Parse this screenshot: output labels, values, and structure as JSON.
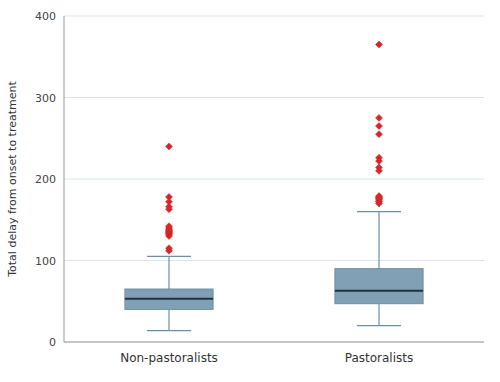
{
  "chart_data": {
    "type": "box",
    "ylabel": "Total delay from onset to treatment",
    "categories": [
      "Non-pastoralists",
      "Pastoralists"
    ],
    "boxes": [
      {
        "q1": 40,
        "median": 53,
        "q3": 65,
        "whislo": 14,
        "whishi": 105,
        "fliers": [
          112,
          115,
          130,
          132,
          133,
          134,
          135,
          136,
          137,
          138,
          140,
          142,
          163,
          166,
          172,
          178,
          240
        ]
      },
      {
        "q1": 47,
        "median": 63,
        "q3": 90,
        "whislo": 20,
        "whishi": 160,
        "fliers": [
          170,
          172,
          173,
          175,
          176,
          177,
          178,
          179,
          210,
          214,
          222,
          226,
          255,
          265,
          275,
          365
        ]
      }
    ],
    "color": "#6b8fa8",
    "ylim": [
      0,
      400
    ],
    "yticks": [
      0,
      100,
      200,
      300,
      400
    ],
    "grid": true
  }
}
